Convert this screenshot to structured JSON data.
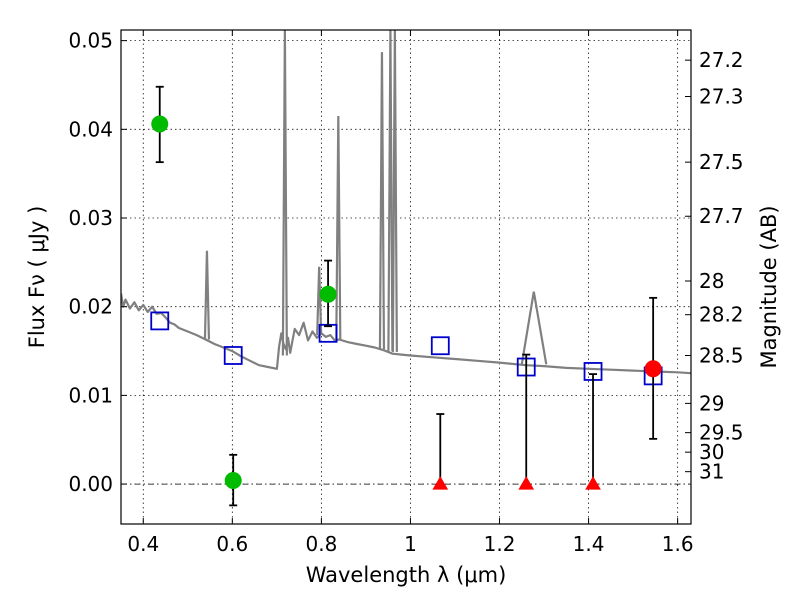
{
  "chart_data": {
    "type": "scatter",
    "xlabel": "Wavelength  λ (μm)",
    "ylabel": "Flux  Fν  ( μJy )",
    "y2label": "Magnitude (AB)",
    "xlim": [
      0.35,
      1.63
    ],
    "ylim": [
      -0.0045,
      0.0512
    ],
    "xticks": [
      0.4,
      0.6,
      0.8,
      1.0,
      1.2,
      1.4,
      1.6
    ],
    "xtick_labels": [
      "0.4",
      "0.6",
      "0.8",
      "1",
      "1.2",
      "1.4",
      "1.6"
    ],
    "yticks": [
      0.0,
      0.01,
      0.02,
      0.03,
      0.04,
      0.05
    ],
    "ytick_labels": [
      "0.00",
      "0.01",
      "0.02",
      "0.03",
      "0.04",
      "0.05"
    ],
    "y2ticks": [
      {
        "mag": "27.2",
        "flux": 0.0478
      },
      {
        "mag": "27.3",
        "flux": 0.0437
      },
      {
        "mag": "27.5",
        "flux": 0.0363
      },
      {
        "mag": "27.7",
        "flux": 0.0302
      },
      {
        "mag": "28",
        "flux": 0.0229
      },
      {
        "mag": "28.2",
        "flux": 0.0191
      },
      {
        "mag": "28.5",
        "flux": 0.0145
      },
      {
        "mag": "29",
        "flux": 0.0091
      },
      {
        "mag": "29.5",
        "flux": 0.0058
      },
      {
        "mag": "30",
        "flux": 0.0036
      },
      {
        "mag": "31",
        "flux": 0.0014
      }
    ],
    "grid": true,
    "zero_line": true,
    "series": [
      {
        "kind": "template-spectrum",
        "color": "#808080",
        "x": [
          0.35,
          0.355,
          0.36,
          0.37,
          0.38,
          0.39,
          0.4,
          0.41,
          0.42,
          0.43,
          0.44,
          0.45,
          0.46,
          0.47,
          0.48,
          0.5,
          0.52,
          0.54,
          0.56,
          0.58,
          0.6,
          0.62,
          0.64,
          0.66,
          0.68,
          0.7,
          0.705,
          0.71,
          0.715,
          0.72,
          0.725,
          0.73,
          0.74,
          0.75,
          0.76,
          0.77,
          0.78,
          0.79,
          0.8,
          0.81,
          0.82,
          0.83,
          0.84,
          0.86,
          0.88,
          0.9,
          0.92,
          0.94,
          0.96,
          0.98,
          1.0,
          1.05,
          1.1,
          1.15,
          1.2,
          1.22,
          1.24,
          1.26,
          1.3,
          1.35,
          1.4,
          1.45,
          1.5,
          1.55,
          1.6,
          1.63
        ],
        "y": [
          0.0215,
          0.02,
          0.0208,
          0.0198,
          0.0205,
          0.0196,
          0.0202,
          0.0194,
          0.02,
          0.0192,
          0.0193,
          0.0188,
          0.0182,
          0.018,
          0.0176,
          0.0172,
          0.0168,
          0.0163,
          0.0158,
          0.0154,
          0.015,
          0.0144,
          0.0139,
          0.0134,
          0.0132,
          0.013,
          0.0155,
          0.017,
          0.0158,
          0.0152,
          0.0165,
          0.0148,
          0.0175,
          0.0168,
          0.0182,
          0.0162,
          0.0172,
          0.0165,
          0.017,
          0.0166,
          0.0168,
          0.0162,
          0.0163,
          0.016,
          0.0158,
          0.0156,
          0.0154,
          0.0151,
          0.0147,
          0.0146,
          0.0145,
          0.0143,
          0.0141,
          0.0139,
          0.0137,
          0.0136,
          0.0135,
          0.0134,
          0.0133,
          0.0131,
          0.013,
          0.0129,
          0.0128,
          0.0127,
          0.0126,
          0.0125
        ]
      },
      {
        "kind": "emission-lines",
        "color": "#808080",
        "lines": [
          {
            "x": 0.543,
            "base": 0.0163,
            "peak": 0.0263
          },
          {
            "x": 0.718,
            "base": 0.0145,
            "peak": 0.0512
          },
          {
            "x": 0.795,
            "base": 0.0168,
            "peak": 0.0245
          },
          {
            "x": 0.838,
            "base": 0.0163,
            "peak": 0.0415
          },
          {
            "x": 0.936,
            "base": 0.0152,
            "peak": 0.0487
          },
          {
            "x": 0.955,
            "base": 0.015,
            "peak": 0.0512
          },
          {
            "x": 0.965,
            "base": 0.0149,
            "peak": 0.0512
          }
        ],
        "bump": {
          "x0": 1.25,
          "peak_x": 1.277,
          "x1": 1.305,
          "peak": 0.0217
        }
      },
      {
        "kind": "model-photometry",
        "marker": "open-square",
        "color": "#0000cc",
        "x": [
          0.437,
          0.602,
          0.815,
          1.067,
          1.26,
          1.41,
          1.545
        ],
        "y": [
          0.0184,
          0.0145,
          0.017,
          0.0156,
          0.0132,
          0.0127,
          0.0122
        ]
      },
      {
        "kind": "detections",
        "marker": "filled-circle",
        "color": "#00bb00",
        "x": [
          0.437,
          0.602,
          0.815
        ],
        "y": [
          0.0406,
          0.0004,
          0.0214
        ],
        "yerr_low": [
          0.0043,
          0.0028,
          0.0036
        ],
        "yerr_high": [
          0.0042,
          0.0029,
          0.0038
        ]
      },
      {
        "kind": "nir-detection",
        "marker": "filled-circle",
        "color": "#ff0000",
        "x": [
          1.545
        ],
        "y": [
          0.013
        ],
        "yerr_low": [
          0.0079
        ],
        "yerr_high": [
          0.008
        ]
      },
      {
        "kind": "upper-limits",
        "marker": "filled-triangle",
        "color": "#ff0000",
        "x": [
          1.067,
          1.26,
          1.41
        ],
        "y": [
          0.0,
          0.0,
          0.0
        ],
        "yerr_high": [
          0.0079,
          0.0146,
          0.0124
        ]
      }
    ]
  }
}
